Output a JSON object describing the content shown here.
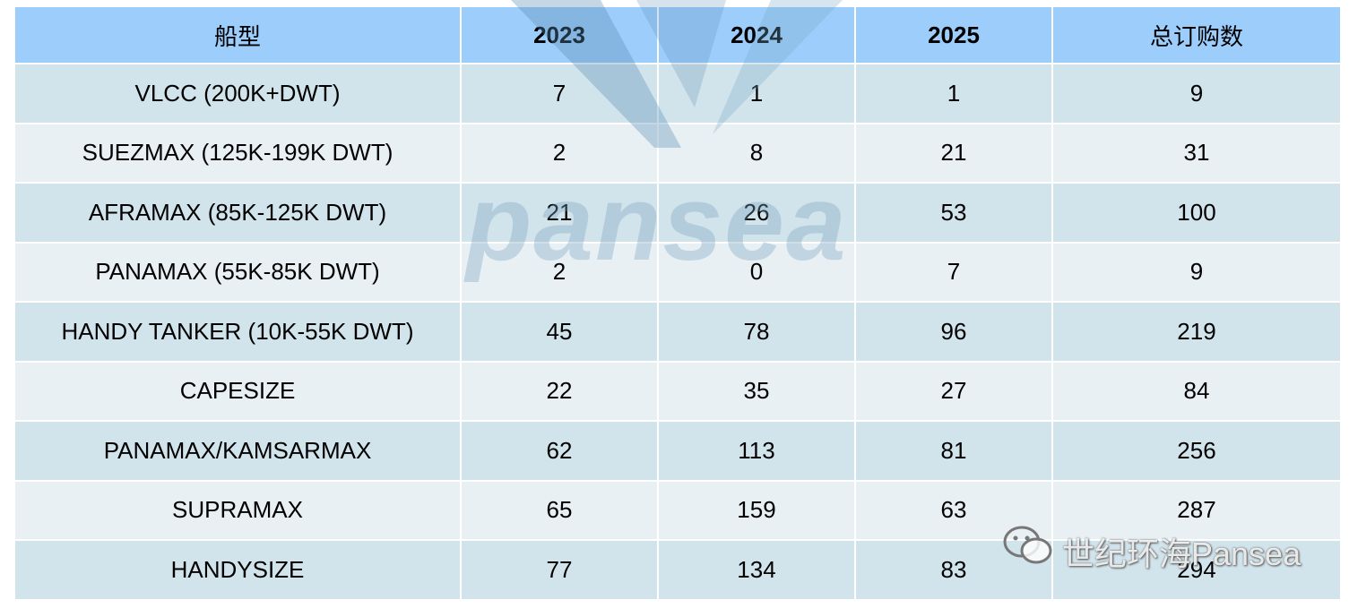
{
  "table": {
    "header": [
      "船型",
      "2023",
      "2024",
      "2025",
      "总订购数"
    ],
    "rows": [
      [
        "VLCC (200K+DWT)",
        7,
        1,
        1,
        9
      ],
      [
        "SUEZMAX (125K-199K DWT)",
        2,
        8,
        21,
        31
      ],
      [
        "AFRAMAX (85K-125K DWT)",
        21,
        26,
        53,
        100
      ],
      [
        "PANAMAX (55K-85K DWT)",
        2,
        0,
        7,
        9
      ],
      [
        "HANDY TANKER (10K-55K DWT)",
        45,
        78,
        96,
        219
      ],
      [
        "CAPESIZE",
        22,
        35,
        27,
        84
      ],
      [
        "PANAMAX/KAMSARMAX",
        62,
        113,
        81,
        256
      ],
      [
        "SUPRAMAX",
        65,
        159,
        63,
        287
      ],
      [
        "HANDYSIZE",
        77,
        134,
        83,
        294
      ]
    ]
  },
  "watermark": {
    "logo": "pansea",
    "caption": "世纪环海Pansea"
  }
}
